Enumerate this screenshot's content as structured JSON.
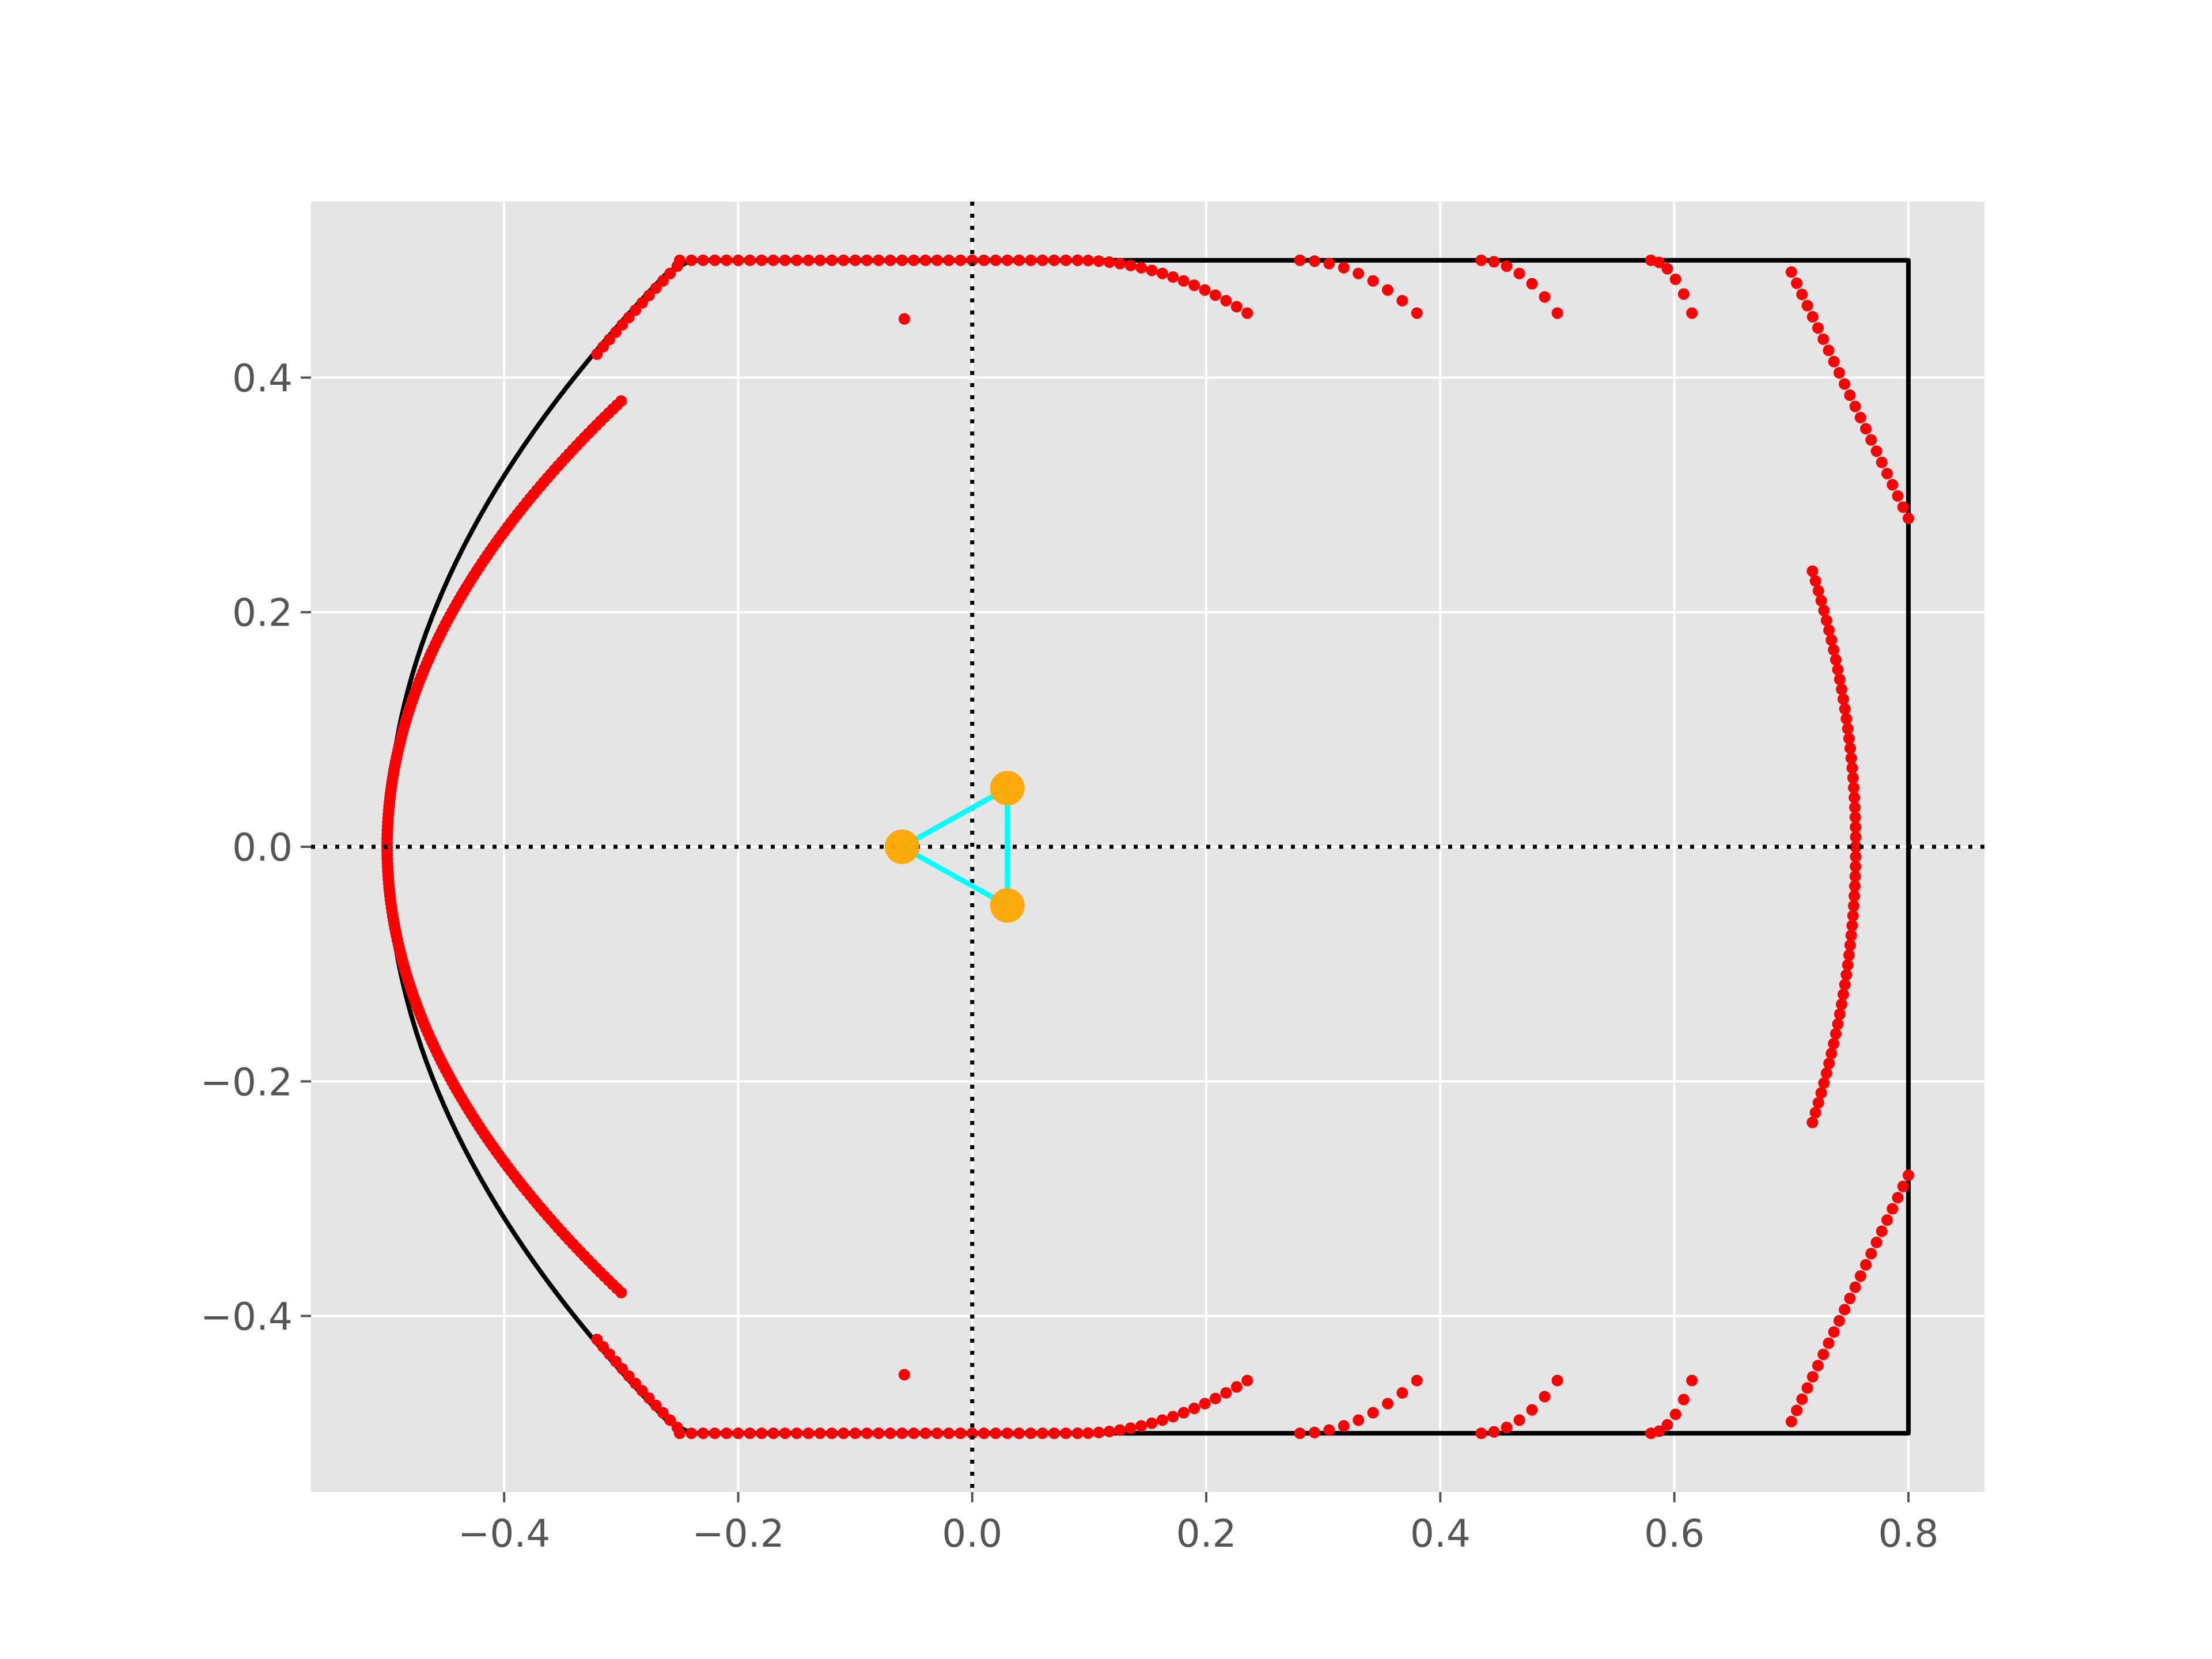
{
  "chart_data": {
    "type": "scatter",
    "title": "",
    "xlabel": "",
    "ylabel": "",
    "xlim": [
      -0.565,
      0.865
    ],
    "ylim": [
      -0.55,
      0.55
    ],
    "xticks": [
      -0.4,
      -0.2,
      0.0,
      0.2,
      0.4,
      0.6,
      0.8
    ],
    "xtick_labels": [
      "−0.4",
      "−0.2",
      "0.0",
      "0.2",
      "0.4",
      "0.6",
      "0.8"
    ],
    "yticks": [
      -0.4,
      -0.2,
      0.0,
      0.2,
      0.4
    ],
    "ytick_labels": [
      "−0.4",
      "−0.2",
      "0.0",
      "0.2",
      "0.4"
    ],
    "grid": true,
    "colors": {
      "background": "#e5e5e5",
      "grid": "#ffffff",
      "boundary": "#000000",
      "points": "#ff0000",
      "triangle": "#00ffff",
      "vertices": "#ffa500",
      "axes_lines": "#000000",
      "tick_text": "#555555"
    },
    "reference_lines": {
      "x": 0.0,
      "y": 0.0,
      "style": "dotted"
    },
    "boundary": {
      "rect": {
        "x_left": -0.24,
        "x_right": 0.8,
        "y_bottom": -0.5,
        "y_top": 0.5
      },
      "arc": {
        "x_vertex": -0.5,
        "x_end": -0.26,
        "y_end": 0.49
      }
    },
    "triangle_vertices": [
      {
        "x": -0.06,
        "y": 0.0
      },
      {
        "x": 0.03,
        "y": 0.05
      },
      {
        "x": 0.03,
        "y": -0.05
      }
    ],
    "point_groups": [
      {
        "kind": "arc",
        "description": "left arc (dense)",
        "x": [
          -0.5,
          -0.3
        ],
        "ymax": 0.38
      },
      {
        "kind": "hline",
        "description": "top/bottom edge points",
        "x": [
          -0.25,
          0.09
        ],
        "y": 0.5
      },
      {
        "kind": "curve",
        "description": "edge bend",
        "x": [
          0.09,
          0.235
        ],
        "y": [
          0.5,
          0.455
        ]
      },
      {
        "kind": "curve",
        "x": [
          0.28,
          0.38
        ],
        "y": [
          0.5,
          0.455
        ]
      },
      {
        "kind": "curve",
        "x": [
          0.435,
          0.5
        ],
        "y": [
          0.5,
          0.455
        ]
      },
      {
        "kind": "curve",
        "x": [
          0.58,
          0.615
        ],
        "y": [
          0.5,
          0.455
        ]
      },
      {
        "kind": "arc",
        "description": "right outer arcs",
        "x": [
          0.7,
          0.8
        ],
        "y": [
          0.49,
          0.28
        ]
      },
      {
        "kind": "arc",
        "description": "right inner arc",
        "x_vertex": 0.755,
        "x_end": 0.718,
        "y_end": 0.235
      },
      {
        "kind": "points",
        "x": [
          -0.058,
          -0.058
        ],
        "y": [
          0.45,
          -0.45
        ]
      }
    ]
  }
}
